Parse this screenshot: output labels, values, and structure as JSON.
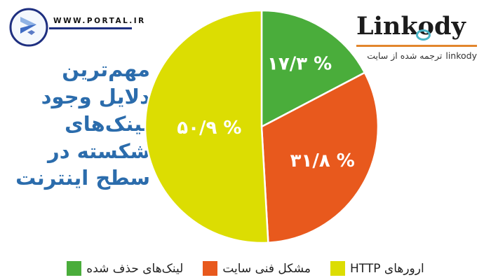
{
  "header": {
    "portal_url": "WWW.PORTAL.IR",
    "brand": {
      "part1": "Link",
      "part2": "o",
      "part3": "dy"
    },
    "caption_fa": "ترجمه شده از سایت",
    "caption_brand": "linkody"
  },
  "title": {
    "lines": [
      "مهم‌ترین",
      "دلایل وجود",
      "لینک‌های",
      "شکسته در",
      "سطح اینترنت"
    ]
  },
  "chart_data": {
    "type": "pie",
    "title": "مهم‌ترین دلایل وجود لینک‌های شکسته در سطح اینترنت",
    "source_note": "ترجمه شده از سایت linkody",
    "start_angle_deg": 0,
    "direction": "clockwise",
    "legend_position": "bottom",
    "slices": [
      {
        "label": "لینک‌های حذف شده",
        "value": 17.3,
        "display": "۱۷/۳ %",
        "color": "#4aad3b"
      },
      {
        "label": "مشکل فنی سایت",
        "value": 31.8,
        "display": "۳۱/۸ %",
        "color": "#e8591d"
      },
      {
        "label": "ارورهای HTTP",
        "value": 50.9,
        "display": "۵۰/۹ %",
        "color": "#dcdd02"
      }
    ]
  },
  "colors": {
    "title_blue": "#2b6cac",
    "navy": "#1e2f80",
    "brand_underline_orange": "#e2862d",
    "link_teal": "#49b4c6"
  }
}
